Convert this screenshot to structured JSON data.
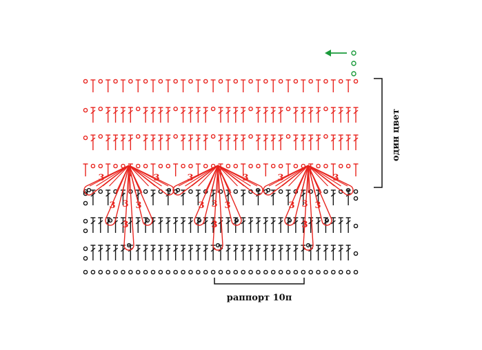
{
  "labels": {
    "side_bracket": "один цвет",
    "repeat": "раппорт 10п"
  },
  "petal_mark": "3",
  "colors": {
    "red": "#e8231d",
    "black": "#111111",
    "green": "#1a9a3a"
  },
  "legend_symbols": [
    "chain-circle",
    "single-crochet",
    "double-crochet",
    "long-stitch-petal",
    "direction-arrow"
  ]
}
